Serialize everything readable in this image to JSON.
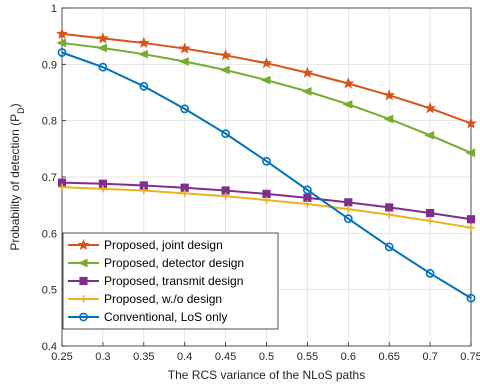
{
  "chart_data": {
    "type": "line",
    "title": "",
    "xlabel": "The RCS variance of the NLoS paths",
    "ylabel_main": "Probability of detection (P",
    "ylabel_sub": "D",
    "ylabel_close": ")",
    "xlim": [
      0.25,
      0.75
    ],
    "ylim": [
      0.4,
      1.0
    ],
    "x_ticks": [
      "0.25",
      "0.3",
      "0.35",
      "0.4",
      "0.45",
      "0.5",
      "0.55",
      "0.6",
      "0.65",
      "0.7",
      "0.75"
    ],
    "y_ticks": [
      "0.4",
      "0.5",
      "0.6",
      "0.7",
      "0.8",
      "0.9",
      "1"
    ],
    "grid": true,
    "legend_position": "bottom-left",
    "x": [
      0.25,
      0.3,
      0.35,
      0.4,
      0.45,
      0.5,
      0.55,
      0.6,
      0.65,
      0.7,
      0.75
    ],
    "series": [
      {
        "name": "Proposed, joint design",
        "color": "#D95319",
        "marker": "star",
        "values": [
          0.954,
          0.946,
          0.938,
          0.928,
          0.916,
          0.902,
          0.885,
          0.866,
          0.845,
          0.822,
          0.795
        ]
      },
      {
        "name": "Proposed, detector design",
        "color": "#77AC30",
        "marker": "triangle-left",
        "values": [
          0.938,
          0.929,
          0.918,
          0.905,
          0.89,
          0.872,
          0.852,
          0.829,
          0.803,
          0.774,
          0.743
        ]
      },
      {
        "name": "Proposed, transmit design",
        "color": "#7E2F8E",
        "marker": "square",
        "values": [
          0.69,
          0.688,
          0.685,
          0.681,
          0.676,
          0.67,
          0.663,
          0.655,
          0.646,
          0.636,
          0.625
        ]
      },
      {
        "name": "Proposed, w./o design",
        "color": "#EDB120",
        "marker": "plus",
        "values": [
          0.682,
          0.679,
          0.676,
          0.671,
          0.666,
          0.659,
          0.652,
          0.643,
          0.633,
          0.622,
          0.61
        ]
      },
      {
        "name": "Conventional, LoS only",
        "color": "#0072BD",
        "marker": "circle",
        "values": [
          0.921,
          0.895,
          0.861,
          0.821,
          0.777,
          0.728,
          0.677,
          0.626,
          0.576,
          0.529,
          0.485
        ]
      }
    ]
  }
}
